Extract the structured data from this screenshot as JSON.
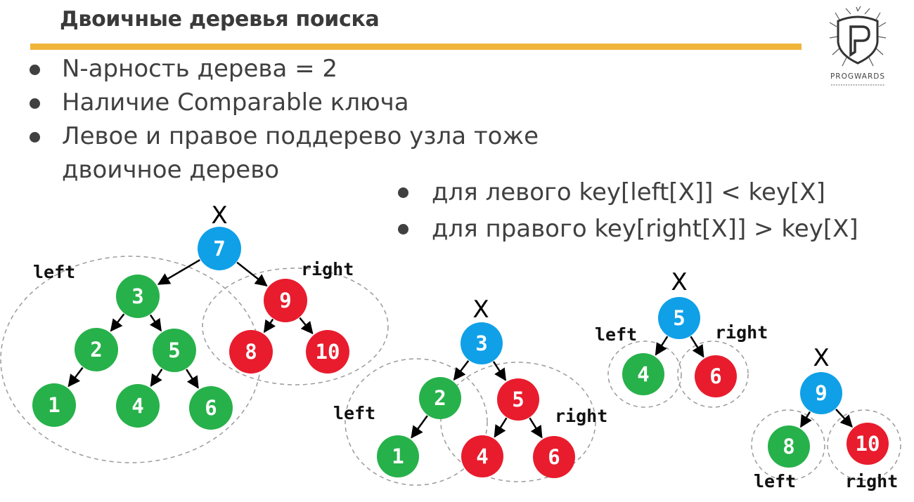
{
  "slide": {
    "title": "Двоичные деревья поиска",
    "bullets": [
      "N-арность дерева = 2",
      "Наличие Comparable ключа",
      "Левое и правое поддерево узла тоже",
      "двоичное дерево"
    ],
    "rules": [
      "для левого key[left[X]] < key[X]",
      "для правого key[right[X]] > key[X]"
    ]
  },
  "logo": {
    "text": "PROGWARDS",
    "icon": "shield-p-logo"
  },
  "colors": {
    "root": "#0fa0e8",
    "left_subtree": "#27b14a",
    "right_subtree": "#e81c2d",
    "accent_rule": "#f0b43a",
    "subtree_outline": "#9a9a9a"
  },
  "trees": [
    {
      "marker": "X",
      "nodes": [
        {
          "id": "7",
          "label": "7",
          "role": "root"
        },
        {
          "id": "3",
          "label": "3",
          "role": "left"
        },
        {
          "id": "9",
          "label": "9",
          "role": "right"
        },
        {
          "id": "2",
          "label": "2",
          "role": "left"
        },
        {
          "id": "5",
          "label": "5",
          "role": "left"
        },
        {
          "id": "8",
          "label": "8",
          "role": "right"
        },
        {
          "id": "10",
          "label": "10",
          "role": "right"
        },
        {
          "id": "1",
          "label": "1",
          "role": "left"
        },
        {
          "id": "4",
          "label": "4",
          "role": "left"
        },
        {
          "id": "6",
          "label": "6",
          "role": "left"
        }
      ],
      "edges": [
        [
          "7",
          "3"
        ],
        [
          "7",
          "9"
        ],
        [
          "3",
          "2"
        ],
        [
          "3",
          "5"
        ],
        [
          "9",
          "8"
        ],
        [
          "9",
          "10"
        ],
        [
          "2",
          "1"
        ],
        [
          "5",
          "4"
        ],
        [
          "5",
          "6"
        ]
      ],
      "subtree_labels": {
        "left": "left",
        "right": "right"
      }
    },
    {
      "marker": "X",
      "nodes": [
        {
          "id": "3",
          "label": "3",
          "role": "root"
        },
        {
          "id": "2",
          "label": "2",
          "role": "left"
        },
        {
          "id": "5",
          "label": "5",
          "role": "right"
        },
        {
          "id": "1",
          "label": "1",
          "role": "left"
        },
        {
          "id": "4",
          "label": "4",
          "role": "right"
        },
        {
          "id": "6",
          "label": "6",
          "role": "right"
        }
      ],
      "edges": [
        [
          "3",
          "2"
        ],
        [
          "3",
          "5"
        ],
        [
          "2",
          "1"
        ],
        [
          "5",
          "4"
        ],
        [
          "5",
          "6"
        ]
      ],
      "subtree_labels": {
        "left": "left",
        "right": "right"
      }
    },
    {
      "marker": "X",
      "nodes": [
        {
          "id": "5",
          "label": "5",
          "role": "root"
        },
        {
          "id": "4",
          "label": "4",
          "role": "left"
        },
        {
          "id": "6",
          "label": "6",
          "role": "right"
        }
      ],
      "edges": [
        [
          "5",
          "4"
        ],
        [
          "5",
          "6"
        ]
      ],
      "subtree_labels": {
        "left": "left",
        "right": "right"
      }
    },
    {
      "marker": "X",
      "nodes": [
        {
          "id": "9",
          "label": "9",
          "role": "root"
        },
        {
          "id": "8",
          "label": "8",
          "role": "left"
        },
        {
          "id": "10",
          "label": "10",
          "role": "right"
        }
      ],
      "edges": [
        [
          "9",
          "8"
        ],
        [
          "9",
          "10"
        ]
      ],
      "subtree_labels": {
        "left": "left",
        "right": "right"
      }
    }
  ]
}
